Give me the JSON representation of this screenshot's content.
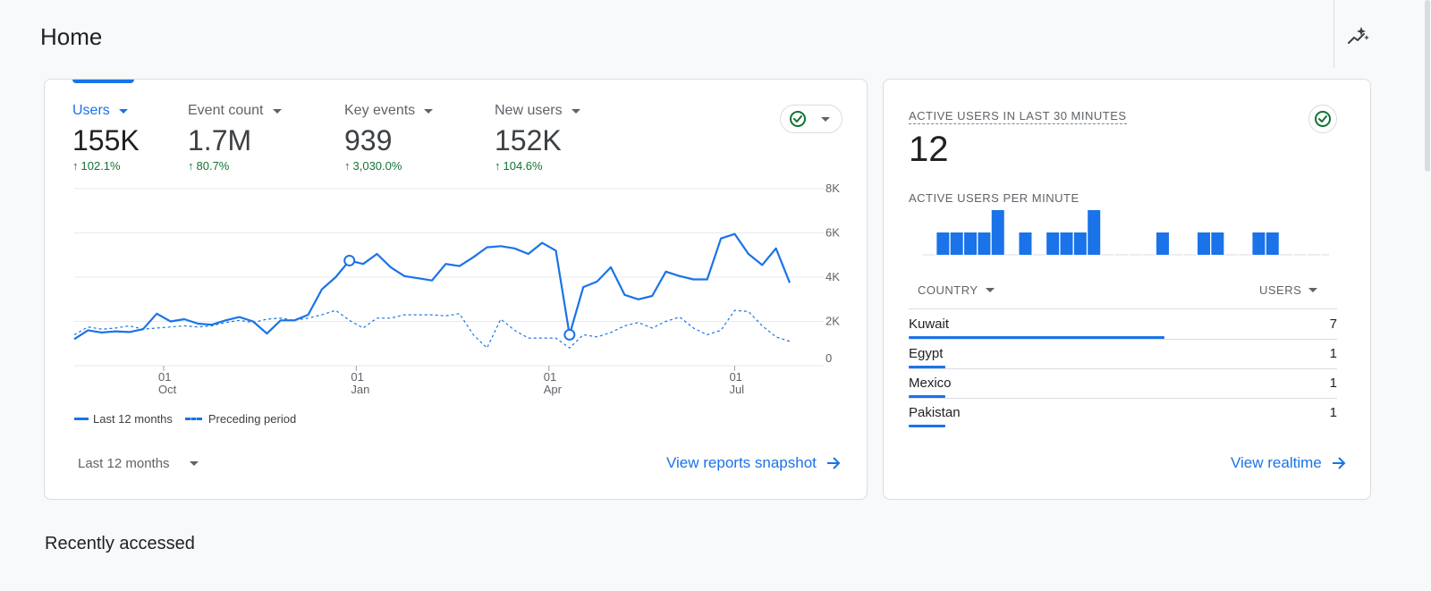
{
  "page": {
    "title": "Home",
    "insights_icon": "insights-sparkle-icon"
  },
  "overview": {
    "metrics": [
      {
        "label": "Users",
        "value": "155K",
        "delta": "102.1%",
        "active": true
      },
      {
        "label": "Event count",
        "value": "1.7M",
        "delta": "80.7%",
        "active": false
      },
      {
        "label": "Key events",
        "value": "939",
        "delta": "3,030.0%",
        "active": false
      },
      {
        "label": "New users",
        "value": "152K",
        "delta": "104.6%",
        "active": false
      }
    ],
    "legend": {
      "current": "Last 12 months",
      "previous": "Preceding period"
    },
    "date_range": "Last 12 months",
    "link": "View reports snapshot"
  },
  "chart_data": {
    "type": "line",
    "x_tick_labels": [
      {
        "day": "01",
        "month": "Oct"
      },
      {
        "day": "01",
        "month": "Jan"
      },
      {
        "day": "01",
        "month": "Apr"
      },
      {
        "day": "01",
        "month": "Jul"
      }
    ],
    "y_tick_labels": [
      "0",
      "2K",
      "4K",
      "6K",
      "8K"
    ],
    "ylim": [
      0,
      8000
    ],
    "series": [
      {
        "name": "Last 12 months",
        "style": "solid",
        "color": "#1a73e8",
        "values": [
          1200,
          1600,
          1500,
          1550,
          1520,
          1650,
          2350,
          2000,
          2100,
          1900,
          1850,
          2050,
          2200,
          2000,
          1450,
          2050,
          2050,
          2300,
          3450,
          4000,
          4750,
          4600,
          5050,
          4450,
          4050,
          3950,
          3850,
          4600,
          4500,
          4900,
          5350,
          5400,
          5300,
          5050,
          5550,
          5200,
          1400,
          3550,
          3800,
          4450,
          3200,
          3000,
          3150,
          4250,
          4050,
          3900,
          3900,
          5750,
          5950,
          5050,
          4550,
          5300,
          3750
        ],
        "markers": [
          20,
          36
        ]
      },
      {
        "name": "Preceding period",
        "style": "dashed",
        "color": "#1a73e8",
        "values": [
          1400,
          1750,
          1650,
          1700,
          1800,
          1650,
          1700,
          1750,
          1800,
          1750,
          1800,
          1950,
          2050,
          1950,
          2100,
          2150,
          2050,
          2150,
          2300,
          2500,
          2050,
          1700,
          2150,
          2150,
          2300,
          2300,
          2300,
          2250,
          2350,
          1400,
          800,
          2100,
          1600,
          1250,
          1250,
          1250,
          800,
          1400,
          1300,
          1500,
          1800,
          1950,
          1700,
          2000,
          2200,
          1700,
          1400,
          1600,
          2500,
          2450,
          1800,
          1300,
          1100
        ]
      }
    ]
  },
  "realtime": {
    "title": "ACTIVE USERS IN LAST 30 MINUTES",
    "value": "12",
    "subtitle": "ACTIVE USERS PER MINUTE",
    "per_minute": [
      0,
      1,
      1,
      1,
      1,
      2,
      0,
      1,
      0,
      1,
      1,
      1,
      2,
      0,
      0,
      0,
      0,
      1,
      0,
      0,
      1,
      1,
      0,
      0,
      1,
      1,
      0,
      0,
      0,
      0
    ],
    "columns": {
      "country": "COUNTRY",
      "users": "USERS"
    },
    "rows": [
      {
        "country": "Kuwait",
        "users": "7"
      },
      {
        "country": "Egypt",
        "users": "1"
      },
      {
        "country": "Mexico",
        "users": "1"
      },
      {
        "country": "Pakistan",
        "users": "1"
      }
    ],
    "link": "View realtime"
  },
  "recent": {
    "title": "Recently accessed"
  },
  "colors": {
    "accent": "#1a73e8",
    "positive": "#137333",
    "status_ok": "#137333"
  }
}
